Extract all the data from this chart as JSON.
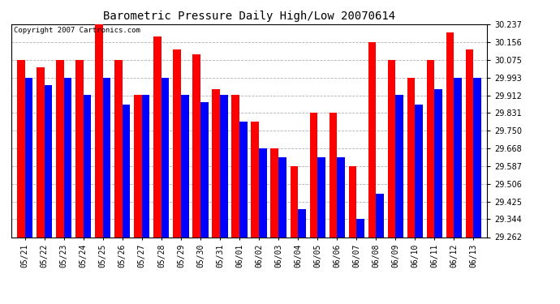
{
  "title": "Barometric Pressure Daily High/Low 20070614",
  "copyright": "Copyright 2007 Cartronics.com",
  "dates": [
    "05/21",
    "05/22",
    "05/23",
    "05/24",
    "05/25",
    "05/26",
    "05/27",
    "05/28",
    "05/29",
    "05/30",
    "05/31",
    "06/01",
    "06/02",
    "06/03",
    "06/04",
    "06/05",
    "06/06",
    "06/07",
    "06/08",
    "06/09",
    "06/10",
    "06/11",
    "06/12",
    "06/13"
  ],
  "highs": [
    30.075,
    30.04,
    30.075,
    30.075,
    30.237,
    30.075,
    29.912,
    30.18,
    30.12,
    30.1,
    29.94,
    29.912,
    29.79,
    29.668,
    29.587,
    29.831,
    29.831,
    29.587,
    30.156,
    30.075,
    29.993,
    30.075,
    30.2,
    30.12
  ],
  "lows": [
    29.993,
    29.96,
    29.993,
    29.912,
    29.993,
    29.87,
    29.912,
    29.993,
    29.912,
    29.88,
    29.912,
    29.79,
    29.668,
    29.628,
    29.39,
    29.628,
    29.628,
    29.344,
    29.46,
    29.912,
    29.87,
    29.94,
    29.993,
    29.993
  ],
  "ymin": 29.262,
  "ymax": 30.237,
  "yticks": [
    30.237,
    30.156,
    30.075,
    29.993,
    29.912,
    29.831,
    29.75,
    29.668,
    29.587,
    29.506,
    29.425,
    29.344,
    29.262
  ],
  "high_color": "#ff0000",
  "low_color": "#0000ff",
  "bg_color": "#ffffff",
  "grid_color": "#b0b0b0",
  "bar_width": 0.4,
  "title_fontsize": 10,
  "tick_fontsize": 7,
  "copyright_fontsize": 6.5
}
